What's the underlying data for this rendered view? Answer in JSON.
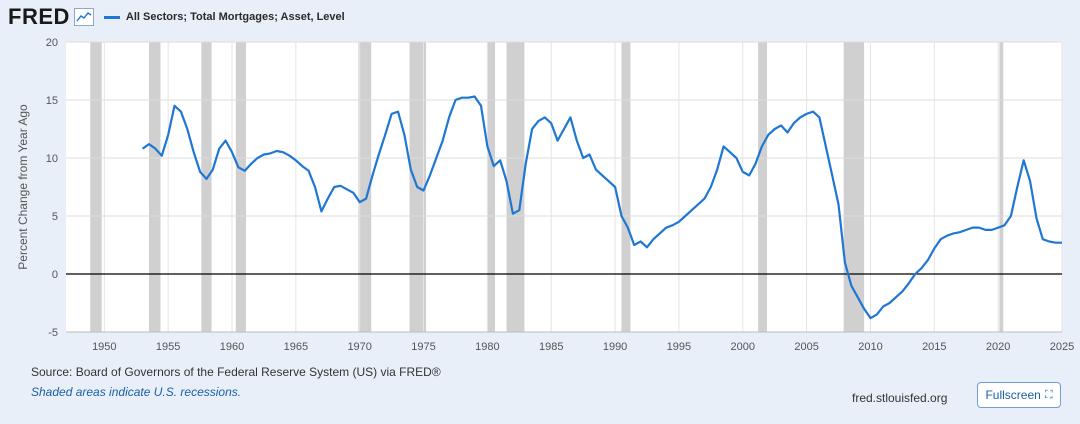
{
  "header": {
    "logo": "FRED",
    "legend_label": "All Sectors; Total Mortgages; Asset, Level"
  },
  "footer": {
    "source": "Source: Board of Governors of the Federal Reserve System (US) via FRED®",
    "note": "Shaded areas indicate U.S. recessions.",
    "site": "fred.stlouisfed.org",
    "fullscreen_label": "Fullscreen",
    "fullscreen_icon": "expand-icon"
  },
  "colors": {
    "line": "#1f77d4",
    "recession": "#d0d0d0",
    "background": "#e8eff8",
    "plot": "#ffffff"
  },
  "chart_data": {
    "type": "line",
    "title": "",
    "xlabel": "",
    "ylabel": "Percent Change from Year Ago",
    "xlim": [
      1947,
      2025
    ],
    "ylim": [
      -5,
      20
    ],
    "yticks": [
      -5,
      0,
      5,
      10,
      15,
      20
    ],
    "xticks": [
      1950,
      1955,
      1960,
      1965,
      1970,
      1975,
      1980,
      1985,
      1990,
      1995,
      2000,
      2005,
      2010,
      2015,
      2020,
      2025
    ],
    "grid": true,
    "legend": "top-left",
    "recessions": [
      [
        1948.9,
        1949.8
      ],
      [
        1953.5,
        1954.4
      ],
      [
        1957.6,
        1958.4
      ],
      [
        1960.3,
        1961.1
      ],
      [
        1969.9,
        1970.9
      ],
      [
        1973.9,
        1975.2
      ],
      [
        1980.0,
        1980.6
      ],
      [
        1981.5,
        1982.9
      ],
      [
        1990.5,
        1991.2
      ],
      [
        2001.2,
        2001.9
      ],
      [
        2007.9,
        2009.5
      ],
      [
        2020.1,
        2020.4
      ]
    ],
    "series": [
      {
        "name": "All Sectors; Total Mortgages; Asset, Level",
        "x": [
          1953.0,
          1953.5,
          1954.0,
          1954.5,
          1955.0,
          1955.5,
          1956.0,
          1956.5,
          1957.0,
          1957.5,
          1958.0,
          1958.5,
          1959.0,
          1959.5,
          1960.0,
          1960.5,
          1961.0,
          1961.5,
          1962.0,
          1962.5,
          1963.0,
          1963.5,
          1964.0,
          1964.5,
          1965.0,
          1965.5,
          1966.0,
          1966.5,
          1967.0,
          1967.5,
          1968.0,
          1968.5,
          1969.0,
          1969.5,
          1970.0,
          1970.5,
          1971.0,
          1971.5,
          1972.0,
          1972.5,
          1973.0,
          1973.5,
          1974.0,
          1974.5,
          1975.0,
          1975.5,
          1976.0,
          1976.5,
          1977.0,
          1977.5,
          1978.0,
          1978.5,
          1979.0,
          1979.5,
          1980.0,
          1980.5,
          1981.0,
          1981.5,
          1982.0,
          1982.5,
          1983.0,
          1983.5,
          1984.0,
          1984.5,
          1985.0,
          1985.5,
          1986.0,
          1986.5,
          1987.0,
          1987.5,
          1988.0,
          1988.5,
          1989.0,
          1989.5,
          1990.0,
          1990.5,
          1991.0,
          1991.5,
          1992.0,
          1992.5,
          1993.0,
          1993.5,
          1994.0,
          1994.5,
          1995.0,
          1995.5,
          1996.0,
          1996.5,
          1997.0,
          1997.5,
          1998.0,
          1998.5,
          1999.0,
          1999.5,
          2000.0,
          2000.5,
          2001.0,
          2001.5,
          2002.0,
          2002.5,
          2003.0,
          2003.5,
          2004.0,
          2004.5,
          2005.0,
          2005.5,
          2006.0,
          2006.5,
          2007.0,
          2007.5,
          2008.0,
          2008.5,
          2009.0,
          2009.5,
          2010.0,
          2010.5,
          2011.0,
          2011.5,
          2012.0,
          2012.5,
          2013.0,
          2013.5,
          2014.0,
          2014.5,
          2015.0,
          2015.5,
          2016.0,
          2016.5,
          2017.0,
          2017.5,
          2018.0,
          2018.5,
          2019.0,
          2019.5,
          2020.0,
          2020.5,
          2021.0,
          2021.5,
          2022.0,
          2022.5,
          2023.0,
          2023.5,
          2024.0,
          2024.5,
          2025.0
        ],
        "y": [
          10.8,
          11.2,
          10.8,
          10.2,
          12.0,
          14.5,
          14.0,
          12.5,
          10.5,
          8.8,
          8.2,
          9.0,
          10.8,
          11.5,
          10.5,
          9.2,
          8.9,
          9.5,
          10.0,
          10.3,
          10.4,
          10.6,
          10.5,
          10.2,
          9.8,
          9.3,
          8.9,
          7.5,
          5.4,
          6.5,
          7.5,
          7.6,
          7.3,
          7.0,
          6.2,
          6.5,
          8.5,
          10.3,
          12.0,
          13.8,
          14.0,
          12.0,
          9.0,
          7.5,
          7.2,
          8.5,
          10.0,
          11.5,
          13.5,
          15.0,
          15.2,
          15.2,
          15.3,
          14.5,
          11.0,
          9.3,
          9.8,
          8.0,
          5.2,
          5.5,
          9.5,
          12.5,
          13.2,
          13.5,
          13.0,
          11.5,
          12.5,
          13.5,
          11.5,
          10.0,
          10.3,
          9.0,
          8.5,
          8.0,
          7.5,
          5.0,
          4.0,
          2.5,
          2.8,
          2.3,
          3.0,
          3.5,
          4.0,
          4.2,
          4.5,
          5.0,
          5.5,
          6.0,
          6.5,
          7.5,
          9.0,
          11.0,
          10.5,
          10.0,
          8.8,
          8.5,
          9.5,
          11.0,
          12.0,
          12.5,
          12.8,
          12.2,
          13.0,
          13.5,
          13.8,
          14.0,
          13.5,
          11.0,
          8.5,
          6.0,
          1.0,
          -1.0,
          -2.0,
          -3.0,
          -3.8,
          -3.5,
          -2.8,
          -2.5,
          -2.0,
          -1.5,
          -0.8,
          0.0,
          0.5,
          1.2,
          2.2,
          3.0,
          3.3,
          3.5,
          3.6,
          3.8,
          4.0,
          4.0,
          3.8,
          3.8,
          4.0,
          4.2,
          5.0,
          7.5,
          9.8,
          8.0,
          4.8,
          3.0,
          2.8,
          2.7,
          2.7
        ]
      }
    ]
  }
}
